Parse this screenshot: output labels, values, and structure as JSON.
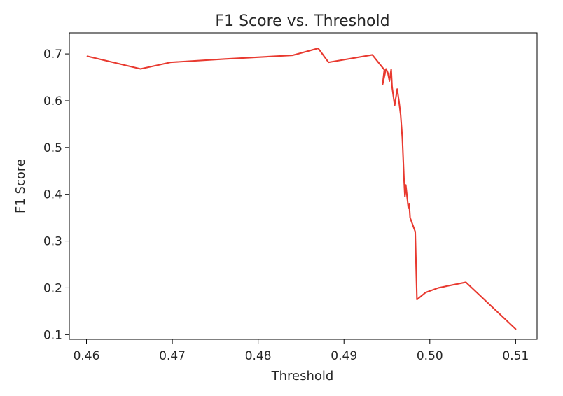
{
  "chart_data": {
    "type": "line",
    "title": "F1 Score vs. Threshold",
    "xlabel": "Threshold",
    "ylabel": "F1 Score",
    "xlim": [
      0.458,
      0.5125
    ],
    "ylim": [
      0.09,
      0.745
    ],
    "xticks": [
      "0.46",
      "0.47",
      "0.48",
      "0.49",
      "0.50",
      "0.51"
    ],
    "xtick_values": [
      0.46,
      0.47,
      0.48,
      0.49,
      0.5,
      0.51
    ],
    "yticks": [
      "0.1",
      "0.2",
      "0.3",
      "0.4",
      "0.5",
      "0.6",
      "0.7"
    ],
    "ytick_values": [
      0.1,
      0.2,
      0.3,
      0.4,
      0.5,
      0.6,
      0.7
    ],
    "grid": false,
    "series": [
      {
        "color": "#e8392f",
        "x": [
          0.4601,
          0.4663,
          0.4698,
          0.476,
          0.484,
          0.487,
          0.4882,
          0.4933,
          0.4947,
          0.4945,
          0.4949,
          0.4951,
          0.4953,
          0.4955,
          0.4956,
          0.4959,
          0.4962,
          0.4964,
          0.4966,
          0.4968,
          0.497,
          0.4971,
          0.4972,
          0.4975,
          0.4976,
          0.4977,
          0.4983,
          0.4985,
          0.4995,
          0.501,
          0.5042,
          0.51
        ],
        "y": [
          0.695,
          0.668,
          0.682,
          0.689,
          0.697,
          0.712,
          0.682,
          0.698,
          0.666,
          0.635,
          0.668,
          0.66,
          0.642,
          0.667,
          0.63,
          0.59,
          0.625,
          0.6,
          0.57,
          0.52,
          0.43,
          0.395,
          0.42,
          0.37,
          0.38,
          0.35,
          0.32,
          0.175,
          0.19,
          0.2,
          0.212,
          0.112
        ]
      }
    ]
  }
}
